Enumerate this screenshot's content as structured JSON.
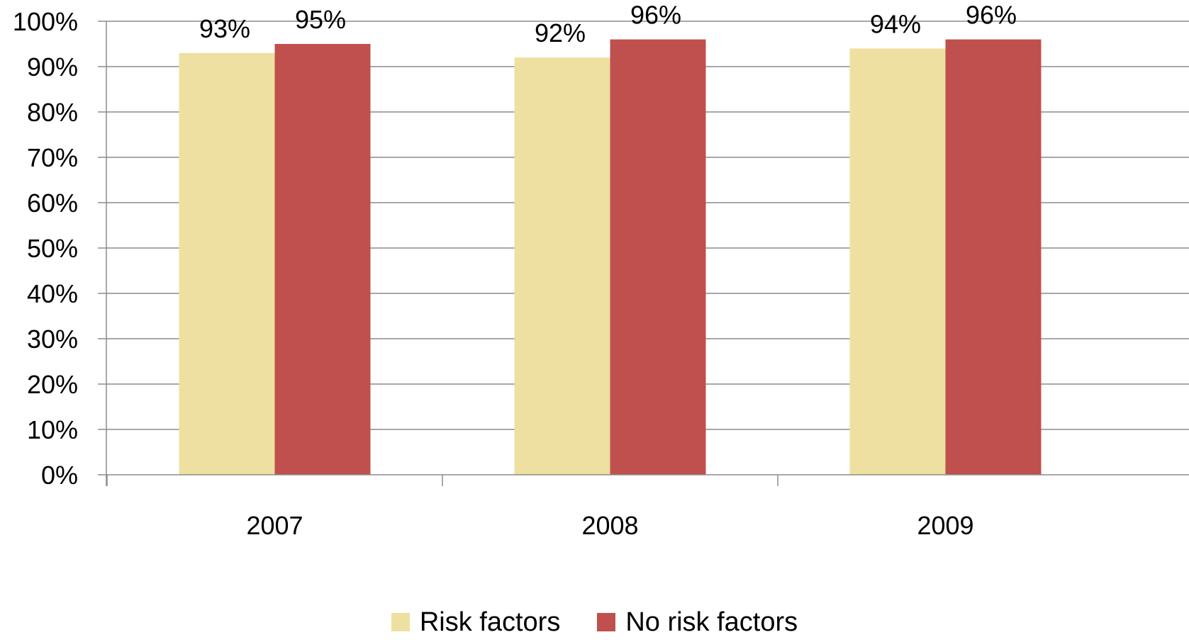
{
  "chart_data": {
    "type": "bar",
    "categories": [
      "2007",
      "2008",
      "2009"
    ],
    "series": [
      {
        "name": "Risk factors",
        "values": [
          93,
          92,
          94
        ],
        "labels": [
          "93%",
          "92%",
          "94%"
        ],
        "color": "#EEE0A0"
      },
      {
        "name": "No risk factors",
        "values": [
          95,
          96,
          96
        ],
        "labels": [
          "95%",
          "96%",
          "96%"
        ],
        "color": "#C0504D"
      }
    ],
    "ylim": [
      0,
      100
    ],
    "yticks": [
      "0%",
      "10%",
      "20%",
      "30%",
      "40%",
      "50%",
      "60%",
      "70%",
      "80%",
      "90%",
      "100%"
    ],
    "grid": true,
    "legend_position": "bottom",
    "title": "",
    "xlabel": "",
    "ylabel": ""
  },
  "legend": {
    "items": [
      {
        "label": "Risk factors",
        "color": "#EEE0A0"
      },
      {
        "label": "No risk factors",
        "color": "#C0504D"
      }
    ]
  }
}
